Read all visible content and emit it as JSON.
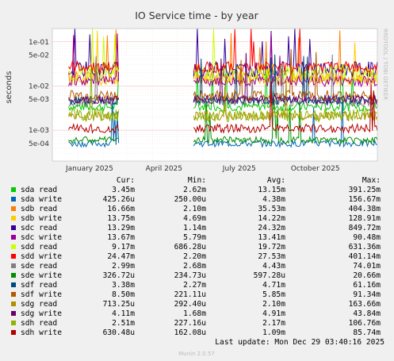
{
  "chart_data": {
    "type": "line",
    "title": "IO Service time - by year",
    "ylabel": "seconds",
    "y_scale": "log",
    "ylim": [
      0.0002,
      0.2
    ],
    "y_ticks": [
      "1e-01",
      "5e-02",
      "1e-02",
      "5e-03",
      "1e-03",
      "5e-04"
    ],
    "x_ticks": [
      "January 2025",
      "April 2025",
      "July 2025",
      "October 2025"
    ],
    "watermark": "RRDTOOL / TOBI OETIKER",
    "gap": [
      "2025-02-20",
      "2025-05-20"
    ],
    "series": [
      {
        "name": "sda read",
        "color": "#00cc00",
        "level": 0.0034,
        "noise": 0.2
      },
      {
        "name": "sda write",
        "color": "#0066b3",
        "level": 0.0005,
        "noise": 0.15
      },
      {
        "name": "sdb read",
        "color": "#ff8000",
        "level": 0.016,
        "noise": 0.3
      },
      {
        "name": "sdb write",
        "color": "#ffcc00",
        "level": 0.014,
        "noise": 0.25
      },
      {
        "name": "sdc read",
        "color": "#330099",
        "level": 0.024,
        "noise": 0.35
      },
      {
        "name": "sdc write",
        "color": "#990099",
        "level": 0.013,
        "noise": 0.25
      },
      {
        "name": "sdd read",
        "color": "#ccff00",
        "level": 0.02,
        "noise": 0.4
      },
      {
        "name": "sdd write",
        "color": "#ff0000",
        "level": 0.027,
        "noise": 0.25
      },
      {
        "name": "sde read",
        "color": "#808080",
        "level": 0.0044,
        "noise": 0.2
      },
      {
        "name": "sde write",
        "color": "#008f00",
        "level": 0.0006,
        "noise": 0.15
      },
      {
        "name": "sdf read",
        "color": "#00487d",
        "level": 0.0047,
        "noise": 0.2
      },
      {
        "name": "sdf write",
        "color": "#b35a00",
        "level": 0.006,
        "noise": 0.25
      },
      {
        "name": "sdg read",
        "color": "#b38f00",
        "level": 0.0021,
        "noise": 0.2
      },
      {
        "name": "sdg write",
        "color": "#6b006b",
        "level": 0.005,
        "noise": 0.2
      },
      {
        "name": "sdh read",
        "color": "#8fb300",
        "level": 0.0022,
        "noise": 0.3
      },
      {
        "name": "sdh write",
        "color": "#b30000",
        "level": 0.0011,
        "noise": 0.2
      }
    ]
  },
  "legend": {
    "headers": {
      "cur": "Cur:",
      "min": "Min:",
      "avg": "Avg:",
      "max": "Max:"
    },
    "rows": [
      {
        "name": "sda read",
        "color": "#00cc00",
        "cur": "3.45m",
        "min": "2.62m",
        "avg": "13.15m",
        "max": "391.25m"
      },
      {
        "name": "sda write",
        "color": "#0066b3",
        "cur": "425.26u",
        "min": "250.00u",
        "avg": "4.38m",
        "max": "156.67m"
      },
      {
        "name": "sdb read",
        "color": "#ff8000",
        "cur": "16.66m",
        "min": "2.10m",
        "avg": "35.53m",
        "max": "404.38m"
      },
      {
        "name": "sdb write",
        "color": "#ffcc00",
        "cur": "13.75m",
        "min": "4.69m",
        "avg": "14.22m",
        "max": "128.91m"
      },
      {
        "name": "sdc read",
        "color": "#330099",
        "cur": "13.29m",
        "min": "1.14m",
        "avg": "24.32m",
        "max": "849.72m"
      },
      {
        "name": "sdc write",
        "color": "#990099",
        "cur": "13.67m",
        "min": "5.79m",
        "avg": "13.41m",
        "max": "90.48m"
      },
      {
        "name": "sdd read",
        "color": "#ccff00",
        "cur": "9.17m",
        "min": "686.28u",
        "avg": "19.72m",
        "max": "631.36m"
      },
      {
        "name": "sdd write",
        "color": "#ff0000",
        "cur": "24.47m",
        "min": "2.20m",
        "avg": "27.53m",
        "max": "401.14m"
      },
      {
        "name": "sde read",
        "color": "#808080",
        "cur": "2.99m",
        "min": "2.68m",
        "avg": "4.43m",
        "max": "74.01m"
      },
      {
        "name": "sde write",
        "color": "#008f00",
        "cur": "326.72u",
        "min": "234.73u",
        "avg": "597.28u",
        "max": "20.66m"
      },
      {
        "name": "sdf read",
        "color": "#00487d",
        "cur": "3.38m",
        "min": "2.27m",
        "avg": "4.71m",
        "max": "61.16m"
      },
      {
        "name": "sdf write",
        "color": "#b35a00",
        "cur": "8.50m",
        "min": "221.11u",
        "avg": "5.85m",
        "max": "91.34m"
      },
      {
        "name": "sdg read",
        "color": "#b38f00",
        "cur": "713.25u",
        "min": "292.40u",
        "avg": "2.10m",
        "max": "163.66m"
      },
      {
        "name": "sdg write",
        "color": "#6b006b",
        "cur": "4.11m",
        "min": "1.68m",
        "avg": "4.91m",
        "max": "43.84m"
      },
      {
        "name": "sdh read",
        "color": "#8fb300",
        "cur": "2.51m",
        "min": "227.16u",
        "avg": "2.17m",
        "max": "106.76m"
      },
      {
        "name": "sdh write",
        "color": "#b30000",
        "cur": "630.48u",
        "min": "162.08u",
        "avg": "1.09m",
        "max": "85.74m"
      }
    ]
  },
  "last_update": "Last update: Mon Dec 29 03:40:16 2025",
  "footer": "Munin 2.0.57"
}
